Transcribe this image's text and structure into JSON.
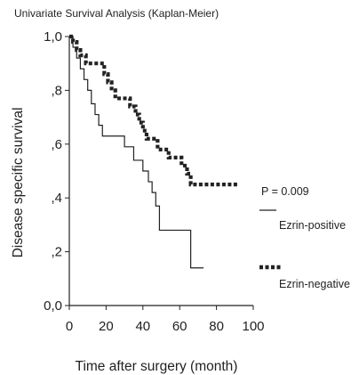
{
  "chart_data": {
    "type": "line",
    "title": "Univariate Survival Analysis (Kaplan-Meier)",
    "xlabel": "Time after surgery (month)",
    "ylabel": "Disease specific survival",
    "xlim": [
      0,
      100
    ],
    "ylim": [
      0,
      1
    ],
    "x_ticks": [
      "0",
      "20",
      "40",
      "60",
      "80",
      "100"
    ],
    "y_ticks": [
      "0,0",
      ",2",
      ",4",
      ",6",
      ",8",
      "1,0"
    ],
    "grid": false,
    "legend_position": "right",
    "annotation": "P = 0.009",
    "series": [
      {
        "name": "Ezrin-positive",
        "line_style": "solid",
        "color": "#222222",
        "steps": [
          [
            0,
            1.0
          ],
          [
            2,
            0.96
          ],
          [
            4,
            0.92
          ],
          [
            6,
            0.88
          ],
          [
            8,
            0.84
          ],
          [
            10,
            0.8
          ],
          [
            12,
            0.75
          ],
          [
            14,
            0.71
          ],
          [
            16,
            0.67
          ],
          [
            18,
            0.63
          ],
          [
            30,
            0.59
          ],
          [
            35,
            0.54
          ],
          [
            40,
            0.5
          ],
          [
            43,
            0.46
          ],
          [
            45,
            0.42
          ],
          [
            47,
            0.37
          ],
          [
            49,
            0.28
          ],
          [
            66,
            0.14
          ],
          [
            73,
            0.14
          ]
        ]
      },
      {
        "name": "Ezrin-negative",
        "line_style": "dotted",
        "color": "#222222",
        "steps": [
          [
            0,
            1.0
          ],
          [
            2,
            0.98
          ],
          [
            4,
            0.95
          ],
          [
            6,
            0.93
          ],
          [
            9,
            0.9
          ],
          [
            19,
            0.86
          ],
          [
            21,
            0.83
          ],
          [
            23,
            0.8
          ],
          [
            25,
            0.77
          ],
          [
            33,
            0.74
          ],
          [
            36,
            0.71
          ],
          [
            38,
            0.68
          ],
          [
            40,
            0.65
          ],
          [
            42,
            0.62
          ],
          [
            48,
            0.58
          ],
          [
            54,
            0.55
          ],
          [
            61,
            0.52
          ],
          [
            64,
            0.49
          ],
          [
            66,
            0.45
          ],
          [
            92,
            0.45
          ]
        ]
      }
    ]
  }
}
